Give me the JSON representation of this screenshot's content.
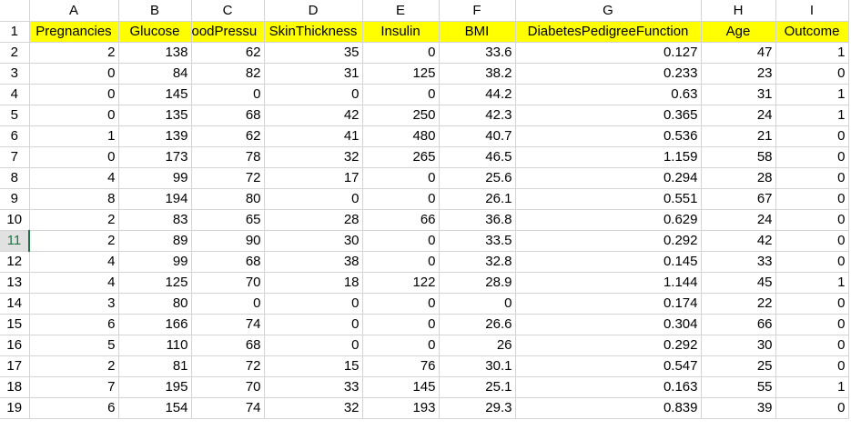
{
  "columns": [
    "A",
    "B",
    "C",
    "D",
    "E",
    "F",
    "G",
    "H",
    "I"
  ],
  "header_row_number": "1",
  "headers": [
    "Pregnancies",
    "Glucose",
    "oodPressu",
    "SkinThickness",
    "Insulin",
    "BMI",
    "DiabetesPedigreeFunction",
    "Age",
    "Outcome"
  ],
  "highlight_color": "#ffff00",
  "active_row": "11",
  "rows": [
    {
      "n": "2",
      "cells": [
        "2",
        "138",
        "62",
        "35",
        "0",
        "33.6",
        "0.127",
        "47",
        "1"
      ]
    },
    {
      "n": "3",
      "cells": [
        "0",
        "84",
        "82",
        "31",
        "125",
        "38.2",
        "0.233",
        "23",
        "0"
      ]
    },
    {
      "n": "4",
      "cells": [
        "0",
        "145",
        "0",
        "0",
        "0",
        "44.2",
        "0.63",
        "31",
        "1"
      ]
    },
    {
      "n": "5",
      "cells": [
        "0",
        "135",
        "68",
        "42",
        "250",
        "42.3",
        "0.365",
        "24",
        "1"
      ]
    },
    {
      "n": "6",
      "cells": [
        "1",
        "139",
        "62",
        "41",
        "480",
        "40.7",
        "0.536",
        "21",
        "0"
      ]
    },
    {
      "n": "7",
      "cells": [
        "0",
        "173",
        "78",
        "32",
        "265",
        "46.5",
        "1.159",
        "58",
        "0"
      ]
    },
    {
      "n": "8",
      "cells": [
        "4",
        "99",
        "72",
        "17",
        "0",
        "25.6",
        "0.294",
        "28",
        "0"
      ]
    },
    {
      "n": "9",
      "cells": [
        "8",
        "194",
        "80",
        "0",
        "0",
        "26.1",
        "0.551",
        "67",
        "0"
      ]
    },
    {
      "n": "10",
      "cells": [
        "2",
        "83",
        "65",
        "28",
        "66",
        "36.8",
        "0.629",
        "24",
        "0"
      ]
    },
    {
      "n": "11",
      "cells": [
        "2",
        "89",
        "90",
        "30",
        "0",
        "33.5",
        "0.292",
        "42",
        "0"
      ]
    },
    {
      "n": "12",
      "cells": [
        "4",
        "99",
        "68",
        "38",
        "0",
        "32.8",
        "0.145",
        "33",
        "0"
      ]
    },
    {
      "n": "13",
      "cells": [
        "4",
        "125",
        "70",
        "18",
        "122",
        "28.9",
        "1.144",
        "45",
        "1"
      ]
    },
    {
      "n": "14",
      "cells": [
        "3",
        "80",
        "0",
        "0",
        "0",
        "0",
        "0.174",
        "22",
        "0"
      ]
    },
    {
      "n": "15",
      "cells": [
        "6",
        "166",
        "74",
        "0",
        "0",
        "26.6",
        "0.304",
        "66",
        "0"
      ]
    },
    {
      "n": "16",
      "cells": [
        "5",
        "110",
        "68",
        "0",
        "0",
        "26",
        "0.292",
        "30",
        "0"
      ]
    },
    {
      "n": "17",
      "cells": [
        "2",
        "81",
        "72",
        "15",
        "76",
        "30.1",
        "0.547",
        "25",
        "0"
      ]
    },
    {
      "n": "18",
      "cells": [
        "7",
        "195",
        "70",
        "33",
        "145",
        "25.1",
        "0.163",
        "55",
        "1"
      ]
    },
    {
      "n": "19",
      "cells": [
        "6",
        "154",
        "74",
        "32",
        "193",
        "29.3",
        "0.839",
        "39",
        "0"
      ]
    }
  ]
}
